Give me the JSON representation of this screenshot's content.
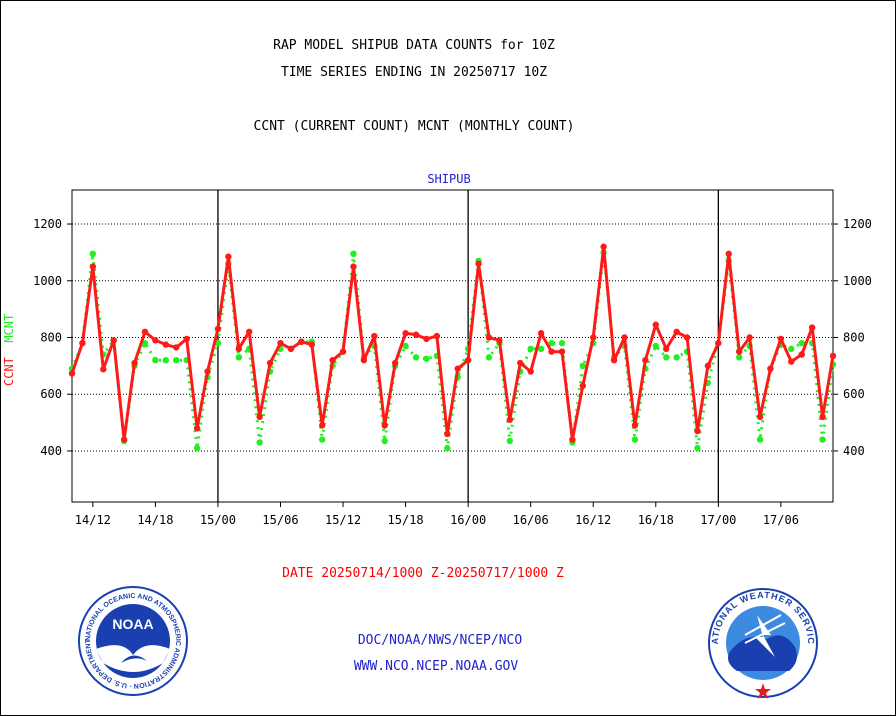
{
  "header": {
    "title_line1": "RAP MODEL SHIPUB DATA COUNTS for 10Z",
    "title_line2": "TIME SERIES ENDING IN 20250717 10Z",
    "subtitle": "CCNT (CURRENT COUNT) MCNT (MONTHLY COUNT)",
    "panel_label": "SHIPUB"
  },
  "footer": {
    "date_range": "DATE 20250714/1000 Z-20250717/1000 Z",
    "org_path": "DOC/NOAA/NWS/NCEP/NCO",
    "website": "WWW.NCO.NCEP.NOAA.GOV",
    "noaa_logo_text": "NOAA",
    "noaa_ring_text": "NATIONAL OCEANIC AND ATMOSPHERIC ADMINISTRATION · U.S. DEPARTMENT OF COMMERCE ·",
    "nws_ring_text": "NATIONAL WEATHER SERVICE"
  },
  "colors": {
    "ccnt": "#ff1a1a",
    "mcnt": "#22ee22",
    "axis": "#000000",
    "footer_red": "#ff0000",
    "footer_blue": "#2222cc",
    "panel_blue": "#2222cc"
  },
  "chart_data": {
    "type": "line",
    "title": "RAP MODEL SHIPUB DATA COUNTS for 10Z",
    "ylabel_parts": [
      "CCNT",
      "MCNT"
    ],
    "x_start_hour": 10,
    "ylim": [
      220,
      1320
    ],
    "yticks": [
      400,
      600,
      800,
      1000,
      1200
    ],
    "xtick_labels": [
      "14/12",
      "14/18",
      "15/00",
      "15/06",
      "15/12",
      "15/18",
      "16/00",
      "16/06",
      "16/12",
      "16/18",
      "17/00",
      "17/06"
    ],
    "grid": true,
    "series": [
      {
        "name": "CCNT",
        "values": [
          673,
          780,
          1050,
          688,
          790,
          440,
          710,
          820,
          790,
          775,
          765,
          795,
          480,
          680,
          830,
          1085,
          760,
          820,
          520,
          710,
          780,
          760,
          785,
          775,
          490,
          720,
          750,
          1050,
          720,
          805,
          490,
          710,
          815,
          810,
          795,
          805,
          460,
          690,
          720,
          1060,
          800,
          790,
          510,
          710,
          680,
          815,
          750,
          750,
          440,
          630,
          800,
          1120,
          720,
          800,
          490,
          720,
          845,
          760,
          820,
          800,
          470,
          700,
          780,
          1095,
          750,
          800,
          520,
          690,
          795,
          715,
          740,
          835,
          520,
          735
        ]
      },
      {
        "name": "MCNT",
        "values": [
          690,
          780,
          1095,
          740,
          790,
          435,
          700,
          780,
          720,
          720,
          720,
          720,
          410,
          660,
          780,
          1060,
          730,
          760,
          430,
          680,
          760,
          760,
          785,
          785,
          440,
          700,
          750,
          1095,
          730,
          770,
          435,
          700,
          770,
          730,
          725,
          735,
          410,
          660,
          760,
          1070,
          730,
          780,
          435,
          680,
          760,
          760,
          780,
          780,
          430,
          700,
          780,
          1100,
          730,
          770,
          440,
          690,
          770,
          730,
          730,
          750,
          410,
          640,
          780,
          1070,
          730,
          770,
          440,
          690,
          775,
          760,
          780,
          780,
          440,
          705
        ]
      }
    ]
  }
}
